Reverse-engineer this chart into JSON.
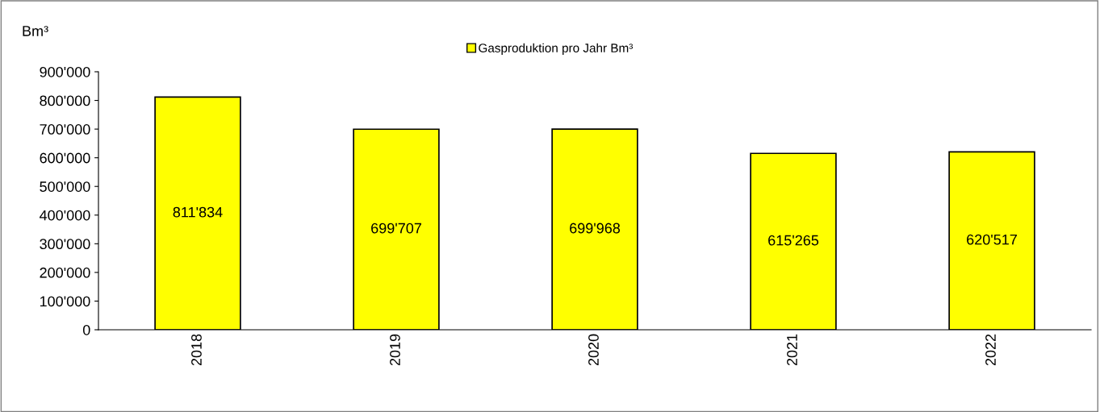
{
  "chart_data": {
    "type": "bar",
    "categories": [
      "2018",
      "2019",
      "2020",
      "2021",
      "2022"
    ],
    "series": [
      {
        "name": "Gasproduktion pro Jahr Bm³",
        "color": "#ffff00",
        "values": [
          811834,
          699707,
          699968,
          615265,
          620517
        ],
        "value_labels": [
          "811'834",
          "699'707",
          "699'968",
          "615'265",
          "620'517"
        ]
      }
    ],
    "ylabel": "Bm³",
    "ylim": [
      0,
      900000
    ],
    "yticks": [
      {
        "value": 0,
        "label": "0"
      },
      {
        "value": 100000,
        "label": "100'000"
      },
      {
        "value": 200000,
        "label": "200'000"
      },
      {
        "value": 300000,
        "label": "300'000"
      },
      {
        "value": 400000,
        "label": "400'000"
      },
      {
        "value": 500000,
        "label": "500'000"
      },
      {
        "value": 600000,
        "label": "600'000"
      },
      {
        "value": 700000,
        "label": "700'000"
      },
      {
        "value": 800000,
        "label": "800'000"
      },
      {
        "value": 900000,
        "label": "900'000"
      }
    ],
    "legend": "top",
    "grid": false
  }
}
